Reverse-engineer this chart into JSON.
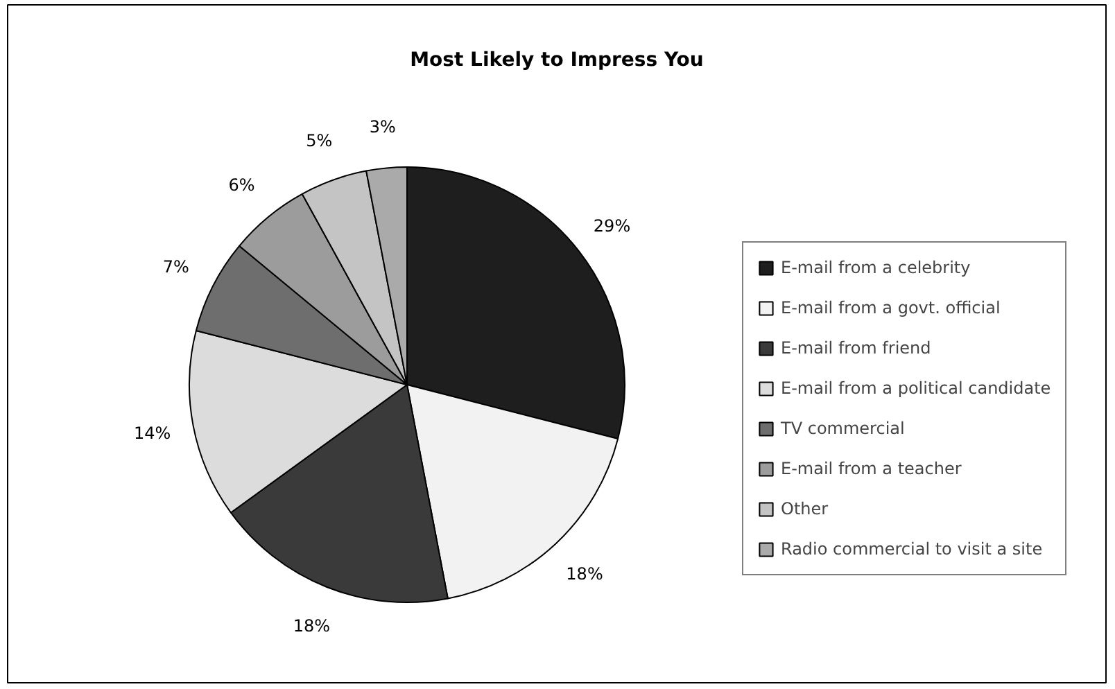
{
  "chart_data": {
    "type": "pie",
    "title": "Most Likely to Impress You",
    "categories": [
      "E-mail from a celebrity",
      "E-mail from a govt. official",
      "E-mail from friend",
      "E-mail from a political candidate",
      "TV commercial",
      "E-mail from a teacher",
      "Other",
      "Radio commercial to visit a site"
    ],
    "values": [
      29,
      18,
      18,
      14,
      7,
      6,
      5,
      3
    ],
    "value_labels": [
      "29%",
      "18%",
      "18%",
      "14%",
      "7%",
      "6%",
      "5%",
      "3%"
    ],
    "colors": [
      "#1e1e1e",
      "#f2f2f2",
      "#3a3a3a",
      "#dcdcdc",
      "#6e6e6e",
      "#9c9c9c",
      "#c4c4c4",
      "#aaaaaa"
    ],
    "legend": "right"
  }
}
